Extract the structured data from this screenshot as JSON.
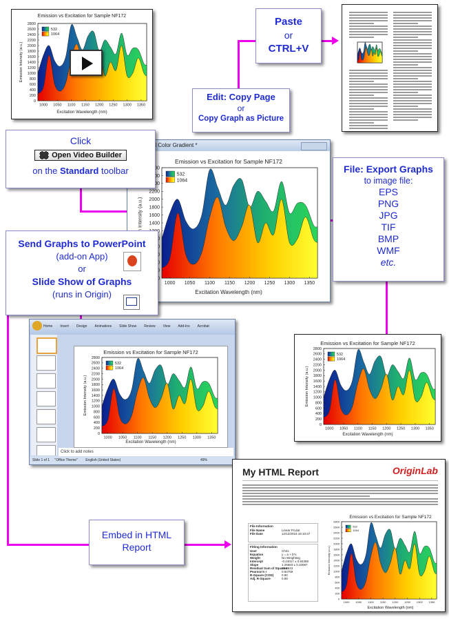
{
  "colors": {
    "connector": "#ee00ee",
    "label_blue": "#1f2bd0"
  },
  "video_builder": {
    "click_label": "Click",
    "button_label": "Open Video Builder",
    "toolbar_prefix": "on the ",
    "toolbar_name": "Standard",
    "toolbar_suffix": " toolbar"
  },
  "paste_box": {
    "line1": "Paste",
    "line2": "or",
    "line3": "CTRL+V"
  },
  "copy_box": {
    "line1": "Edit: Copy Page",
    "line2": "or",
    "line3": "Copy Graph as Picture"
  },
  "export_box": {
    "title": "File: Export Graphs",
    "subtitle1": "to image file:",
    "subtitle2": "",
    "formats": [
      "EPS",
      "PNG",
      "JPG",
      "TIF",
      "BMP",
      "WMF"
    ],
    "etc": "etc."
  },
  "powerpoint_box": {
    "line1": "Send Graphs to PowerPoint",
    "line2": "(add-on App)",
    "line3": "or",
    "line4": "Slide Show of Graphs",
    "line5": "(runs in Origin)"
  },
  "html_box": {
    "line1": "Embed in HTML",
    "line2": "Report"
  },
  "origin_window": {
    "title": "Horizontal Color Gradient *"
  },
  "chart": {
    "title": "Emission vs Excitation for Sample NF172",
    "xlabel": "Excitation Wavelength (nm)",
    "ylabel": "Emission Intensity (a.u.)",
    "legend": [
      "532",
      "1064"
    ],
    "xticks": [
      "1000",
      "1050",
      "1100",
      "1150",
      "1200",
      "1250",
      "1300",
      "1350"
    ],
    "yticks": [
      "0",
      "200",
      "400",
      "600",
      "800",
      "1000",
      "1200",
      "1400",
      "1600",
      "1800",
      "2000",
      "2200",
      "2400",
      "2600",
      "2800"
    ]
  },
  "ppt": {
    "tabs": [
      "Home",
      "Insert",
      "Design",
      "Animations",
      "Slide Show",
      "Review",
      "View",
      "Add-Ins",
      "Acrobat"
    ],
    "notes": "Click to add notes",
    "status": [
      "Slide 1 of 1",
      "\"Office Theme\"",
      "English (United States)"
    ],
    "zoom": "49%"
  },
  "html_report": {
    "title": "My HTML Report",
    "logo": "OriginLab",
    "file_info_title": "File Information",
    "file_info": [
      [
        "File Name",
        "Linear Fit.dat"
      ],
      [
        "File Date",
        "12/12/2018 16:10:47"
      ]
    ],
    "fitting_title": "Fitting Information",
    "fitting": [
      [
        "User",
        "Chris"
      ],
      [
        "Equation",
        "y = a + b*x"
      ],
      [
        "Weight",
        "No Weighting"
      ],
      [
        "Intercept",
        "-0.24017 ± 0.84388"
      ],
      [
        "Slope",
        "1.25683 ± 0.10087"
      ],
      [
        "Residual Sum of Squares",
        "28.8843"
      ],
      [
        "Pearson's r",
        "0.94759"
      ],
      [
        "R-Square (COD)",
        "0.90"
      ],
      [
        "Adj. R-Square",
        "0.89"
      ]
    ]
  },
  "chart_data": {
    "type": "area",
    "title": "Emission vs Excitation for Sample NF172",
    "xlabel": "Excitation Wavelength (nm)",
    "ylabel": "Emission Intensity (a.u.)",
    "xlim": [
      980,
      1370
    ],
    "ylim": [
      0,
      2800
    ],
    "x": [
      980,
      1000,
      1020,
      1040,
      1060,
      1080,
      1100,
      1120,
      1140,
      1160,
      1180,
      1200,
      1220,
      1240,
      1260,
      1280,
      1300,
      1320,
      1340,
      1360,
      1370
    ],
    "series": [
      {
        "name": "532",
        "values": [
          1000,
          1650,
          2000,
          1450,
          1250,
          1600,
          2750,
          2300,
          1850,
          2350,
          2500,
          1800,
          2200,
          1950,
          1700,
          2450,
          1650,
          1900,
          1850,
          1350,
          1300
        ]
      },
      {
        "name": "1064",
        "values": [
          250,
          500,
          1650,
          600,
          350,
          650,
          1550,
          2050,
          1300,
          950,
          1300,
          1850,
          900,
          1400,
          1100,
          2000,
          900,
          1000,
          1550,
          1000,
          900
        ]
      }
    ]
  }
}
